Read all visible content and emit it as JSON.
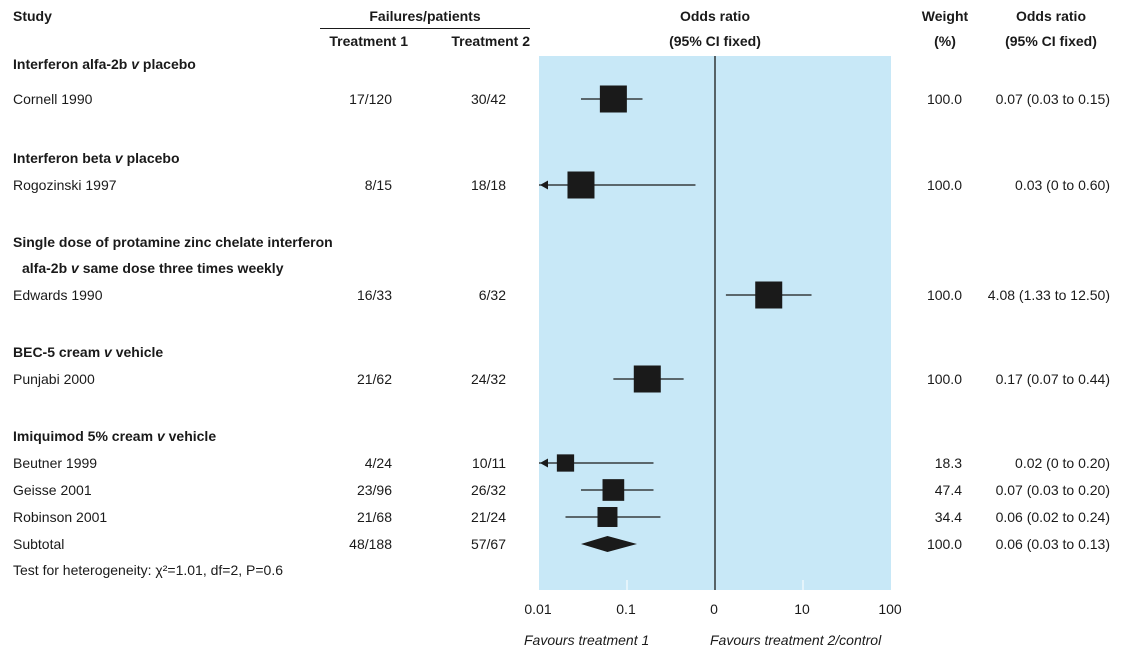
{
  "header": {
    "study": "Study",
    "failures_patients": "Failures/patients",
    "treatment1": "Treatment 1",
    "treatment2": "Treatment 2",
    "or_label": "Odds ratio",
    "or_ci_fixed": "(95% CI fixed)",
    "weight": "Weight",
    "weight_unit": "(%)",
    "or_label_right": "Odds ratio",
    "or_ci_fixed_right": "(95% CI fixed)"
  },
  "groups": [
    {
      "title_parts": [
        {
          "text": "Interferon alfa-2b ",
          "italic": false
        },
        {
          "text": "v",
          "italic": true
        },
        {
          "text": " placebo",
          "italic": false
        }
      ],
      "title_line2_parts": null,
      "rows": [
        {
          "study": "Cornell 1990",
          "t1": "17/120",
          "t2": "30/42",
          "weight": "100.0",
          "ci_text": "0.07 (0.03 to 0.15)"
        }
      ]
    },
    {
      "title_parts": [
        {
          "text": "Interferon beta ",
          "italic": false
        },
        {
          "text": "v",
          "italic": true
        },
        {
          "text": " placebo",
          "italic": false
        }
      ],
      "title_line2_parts": null,
      "rows": [
        {
          "study": "Rogozinski 1997",
          "t1": "8/15",
          "t2": "18/18",
          "weight": "100.0",
          "ci_text": "0.03 (0 to 0.60)"
        }
      ]
    },
    {
      "title_parts": [
        {
          "text": "Single dose of protamine zinc chelate interferon",
          "italic": false
        }
      ],
      "title_line2_parts": [
        {
          "text": "alfa-2b ",
          "italic": false
        },
        {
          "text": "v",
          "italic": true
        },
        {
          "text": " same dose three times weekly",
          "italic": false
        }
      ],
      "rows": [
        {
          "study": "Edwards 1990",
          "t1": "16/33",
          "t2": "6/32",
          "weight": "100.0",
          "ci_text": "4.08 (1.33 to 12.50)"
        }
      ]
    },
    {
      "title_parts": [
        {
          "text": "BEC-5 cream ",
          "italic": false
        },
        {
          "text": "v",
          "italic": true
        },
        {
          "text": " vehicle",
          "italic": false
        }
      ],
      "title_line2_parts": null,
      "rows": [
        {
          "study": "Punjabi 2000",
          "t1": "21/62",
          "t2": "24/32",
          "weight": "100.0",
          "ci_text": "0.17 (0.07 to 0.44)"
        }
      ]
    },
    {
      "title_parts": [
        {
          "text": "Imiquimod 5% cream ",
          "italic": false
        },
        {
          "text": "v",
          "italic": true
        },
        {
          "text": " vehicle",
          "italic": false
        }
      ],
      "title_line2_parts": null,
      "rows": [
        {
          "study": "Beutner 1999",
          "t1": "4/24",
          "t2": "10/11",
          "weight": "18.3",
          "ci_text": "0.02 (0 to 0.20)"
        },
        {
          "study": "Geisse 2001",
          "t1": "23/96",
          "t2": "26/32",
          "weight": "47.4",
          "ci_text": "0.07 (0.03 to 0.20)"
        },
        {
          "study": "Robinson 2001",
          "t1": "21/68",
          "t2": "21/24",
          "weight": "34.4",
          "ci_text": "0.06 (0.02 to 0.24)"
        },
        {
          "study": "Subtotal",
          "t1": "48/188",
          "t2": "57/67",
          "weight": "100.0",
          "ci_text": "0.06 (0.03 to 0.13)"
        }
      ]
    }
  ],
  "heterogeneity": "Test for heterogeneity: χ²=1.01, df=2, P=0.6",
  "axis": {
    "ticks": [
      "0.01",
      "0.1",
      "0",
      "10",
      "100"
    ]
  },
  "favours_left": "Favours treatment 1",
  "favours_right": "Favours treatment 2/control",
  "colors": {
    "plot_background": "#c8e8f7",
    "marker": "#1a1a1a",
    "text": "#1a1a1a"
  },
  "chart_data": {
    "type": "forest",
    "scale": "log",
    "xlim": [
      0.01,
      100
    ],
    "reference_line": 1,
    "x_tick_labels": [
      "0.01",
      "0.1",
      "0",
      "10",
      "100"
    ],
    "studies": [
      {
        "group": "Interferon alfa-2b v placebo",
        "study": "Cornell 1990",
        "or": 0.07,
        "lower": 0.03,
        "upper": 0.15,
        "weight": 100.0,
        "kind": "study"
      },
      {
        "group": "Interferon beta v placebo",
        "study": "Rogozinski 1997",
        "or": 0.03,
        "lower": 0,
        "upper": 0.6,
        "weight": 100.0,
        "kind": "study",
        "lower_truncated": true
      },
      {
        "group": "Single dose of protamine zinc chelate interferon alfa-2b v same dose three times weekly",
        "study": "Edwards 1990",
        "or": 4.08,
        "lower": 1.33,
        "upper": 12.5,
        "weight": 100.0,
        "kind": "study"
      },
      {
        "group": "BEC-5 cream v vehicle",
        "study": "Punjabi 2000",
        "or": 0.17,
        "lower": 0.07,
        "upper": 0.44,
        "weight": 100.0,
        "kind": "study"
      },
      {
        "group": "Imiquimod 5% cream v vehicle",
        "study": "Beutner 1999",
        "or": 0.02,
        "lower": 0,
        "upper": 0.2,
        "weight": 18.3,
        "kind": "study",
        "lower_truncated": true
      },
      {
        "group": "Imiquimod 5% cream v vehicle",
        "study": "Geisse 2001",
        "or": 0.07,
        "lower": 0.03,
        "upper": 0.2,
        "weight": 47.4,
        "kind": "study"
      },
      {
        "group": "Imiquimod 5% cream v vehicle",
        "study": "Robinson 2001",
        "or": 0.06,
        "lower": 0.02,
        "upper": 0.24,
        "weight": 34.4,
        "kind": "study"
      },
      {
        "group": "Imiquimod 5% cream v vehicle",
        "study": "Subtotal",
        "or": 0.06,
        "lower": 0.03,
        "upper": 0.13,
        "weight": 100.0,
        "kind": "subtotal"
      }
    ]
  }
}
